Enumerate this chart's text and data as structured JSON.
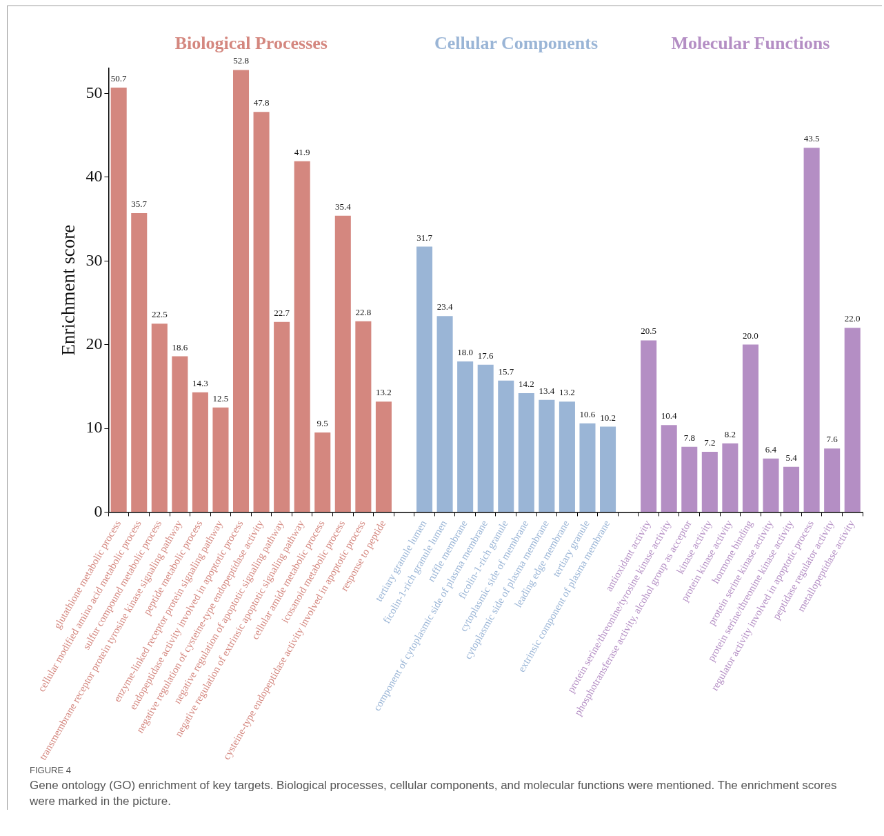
{
  "chart_data": {
    "type": "bar",
    "ylabel": "Enrichment score",
    "categories": [
      "glutathione metabolic process",
      "cellular modified amino acid metabolic process",
      "sulfur compound metabolic process",
      "transmembrane receptor protein tyrosine kinase signaling pathway",
      "peptide metabolic process",
      "enzyme-linked receptor protein signaling pathway",
      "endopeptidase activity involved in apoptotic process",
      "negative regulation of cysteine-type endopeptidase activity",
      "negative regulation of apoptotic signaling pathway",
      "negative regulation of extrinsic apoptotic signaling pathway",
      "cellular amide metabolic process",
      "icosanoid metabolic process",
      "cysteine-type endopeptidase activity involved in apoptotic process",
      "response to peptide",
      null,
      "tertiary granule lumen",
      "ficolin-1-rich granule lumen",
      "ruffle membrane",
      "component of cytoplasmic side of plasma membrane",
      "ficolin-1-rich granule",
      "cytoplasmic side of membrane",
      "cytoplasmic side of plasma membrane",
      "leading edge membrane",
      "tertiary granule",
      "extrinsic component of plasma membrane",
      null,
      "antioxidant activity",
      "protein serine/threonine/tyrosine kinase activity",
      "phosphotransferase activity, alcohol group as acceptor",
      "kinase activity",
      "protein kinase activity",
      "hormone binding",
      "protein serine kinase activity",
      "protein serine/threonine kinase activity",
      "regulator activity involved in apoptotic process",
      "peptidase regulator activity",
      "metallopeptidase activity"
    ],
    "series": [
      {
        "name": "Biological Processes",
        "color": "#d4877f",
        "values": [
          50.7,
          35.7,
          22.5,
          18.6,
          14.3,
          12.5,
          52.8,
          47.8,
          22.7,
          41.9,
          9.5,
          35.4,
          22.8,
          13.2,
          null,
          null,
          null,
          null,
          null,
          null,
          null,
          null,
          null,
          null,
          null,
          null,
          null,
          null,
          null,
          null,
          null,
          null,
          null,
          null,
          null,
          null,
          null
        ],
        "value_labels": [
          "50.7",
          "35.7",
          "22.5",
          "18.6",
          "14.3",
          "12.5",
          "52.8",
          "47.8",
          "22.7",
          "41.9",
          "9.5",
          "35.4",
          "22.8",
          "13.2",
          null,
          null,
          null,
          null,
          null,
          null,
          null,
          null,
          null,
          null,
          null,
          null,
          null,
          null,
          null,
          null,
          null,
          null,
          null,
          null,
          null,
          null,
          null
        ]
      },
      {
        "name": "Cellular Components",
        "color": "#9ab5d6",
        "values": [
          null,
          null,
          null,
          null,
          null,
          null,
          null,
          null,
          null,
          null,
          null,
          null,
          null,
          null,
          null,
          31.7,
          23.4,
          18.0,
          17.6,
          15.7,
          14.2,
          13.4,
          13.2,
          10.6,
          10.2,
          null,
          null,
          null,
          null,
          null,
          null,
          null,
          null,
          null,
          null,
          null,
          null
        ],
        "value_labels": [
          null,
          null,
          null,
          null,
          null,
          null,
          null,
          null,
          null,
          null,
          null,
          null,
          null,
          null,
          null,
          "31.7",
          "23.4",
          "18.0",
          "17.6",
          "15.7",
          "14.2",
          "13.4",
          "13.2",
          "10.6",
          "10.2",
          null,
          null,
          null,
          null,
          null,
          null,
          null,
          null,
          null,
          null,
          null,
          null
        ]
      },
      {
        "name": "Molecular Functions",
        "color": "#b48ec4",
        "values": [
          null,
          null,
          null,
          null,
          null,
          null,
          null,
          null,
          null,
          null,
          null,
          null,
          null,
          null,
          null,
          null,
          null,
          null,
          null,
          null,
          null,
          null,
          null,
          null,
          null,
          null,
          20.5,
          10.4,
          7.8,
          7.2,
          8.2,
          20.0,
          6.4,
          5.4,
          43.5,
          7.6,
          22.0
        ],
        "value_labels": [
          null,
          null,
          null,
          null,
          null,
          null,
          null,
          null,
          null,
          null,
          null,
          null,
          null,
          null,
          null,
          null,
          null,
          null,
          null,
          null,
          null,
          null,
          null,
          null,
          null,
          null,
          "20.5",
          "10.4",
          "7.8",
          "7.2",
          "8.2",
          "20.0",
          "6.4",
          "5.4",
          "43.5",
          "7.6",
          "22.0"
        ]
      }
    ],
    "ylim": [
      0,
      53
    ],
    "yticks": [
      0,
      10,
      20,
      30,
      40,
      50
    ],
    "legend": false,
    "annotations": [
      "FIGURE 4",
      "Gene ontology (GO) enrichment of key targets. Biological processes, cellular components, and molecular functions were mentioned. The enrichment scores were marked in the picture."
    ]
  }
}
